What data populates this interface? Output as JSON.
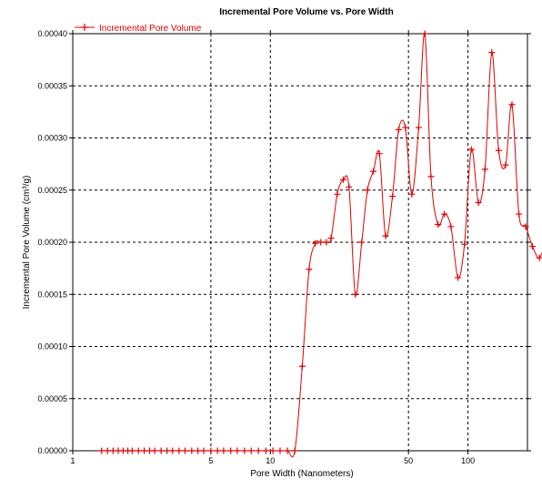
{
  "chart_data": {
    "type": "line",
    "title": "Incremental Pore Volume vs. Pore Width",
    "xlabel": "Pore Width (Nanometers)",
    "ylabel": "Incremental Pore Volume (cm³/g)",
    "x_scale": "log",
    "xlim": [
      1,
      200
    ],
    "ylim": [
      0,
      0.0004
    ],
    "grid": true,
    "legend_position": "top-left",
    "x_ticks": [
      {
        "value": 1,
        "label": "1"
      },
      {
        "value": 5,
        "label": "5"
      },
      {
        "value": 10,
        "label": "10"
      },
      {
        "value": 50,
        "label": "50"
      },
      {
        "value": 100,
        "label": "100"
      }
    ],
    "y_ticks": [
      "0.00000",
      "0.00005",
      "0.00010",
      "0.00015",
      "0.00020",
      "0.00025",
      "0.00030",
      "0.00035",
      "0.00040"
    ],
    "y_tick_values": [
      0,
      5e-05,
      0.0001,
      0.00015,
      0.0002,
      0.00025,
      0.0003,
      0.00035,
      0.0004
    ],
    "series": [
      {
        "name": "Incremental Pore Volume",
        "color": "#e00000",
        "marker": "plus",
        "points": [
          {
            "x": 1.4,
            "y": 0
          },
          {
            "x": 1.5,
            "y": 0
          },
          {
            "x": 1.6,
            "y": 0
          },
          {
            "x": 1.7,
            "y": 0
          },
          {
            "x": 1.8,
            "y": 0
          },
          {
            "x": 1.9,
            "y": 0
          },
          {
            "x": 2.0,
            "y": 0
          },
          {
            "x": 2.15,
            "y": 0
          },
          {
            "x": 2.3,
            "y": 0
          },
          {
            "x": 2.45,
            "y": 0
          },
          {
            "x": 2.6,
            "y": 0
          },
          {
            "x": 2.8,
            "y": 0
          },
          {
            "x": 3.0,
            "y": 0
          },
          {
            "x": 3.2,
            "y": 0
          },
          {
            "x": 3.45,
            "y": 0
          },
          {
            "x": 3.7,
            "y": 0
          },
          {
            "x": 4.0,
            "y": 0
          },
          {
            "x": 4.3,
            "y": 0
          },
          {
            "x": 4.6,
            "y": 0
          },
          {
            "x": 5.0,
            "y": 0
          },
          {
            "x": 5.4,
            "y": 0
          },
          {
            "x": 5.8,
            "y": 0
          },
          {
            "x": 6.3,
            "y": 0
          },
          {
            "x": 6.8,
            "y": 0
          },
          {
            "x": 7.4,
            "y": 0
          },
          {
            "x": 8.0,
            "y": 0
          },
          {
            "x": 8.7,
            "y": 0
          },
          {
            "x": 9.5,
            "y": 0
          },
          {
            "x": 10.3,
            "y": 0
          },
          {
            "x": 11.2,
            "y": 0
          },
          {
            "x": 12.2,
            "y": 0
          },
          {
            "x": 13.3,
            "y": 0
          },
          {
            "x": 14.5,
            "y": 8.1e-05
          },
          {
            "x": 15.7,
            "y": 0.000174
          },
          {
            "x": 16.9,
            "y": 0.000199
          },
          {
            "x": 18.0,
            "y": 0.0002
          },
          {
            "x": 19.2,
            "y": 0.0002
          },
          {
            "x": 20.3,
            "y": 0.000204
          },
          {
            "x": 21.8,
            "y": 0.000246
          },
          {
            "x": 23.4,
            "y": 0.00026
          },
          {
            "x": 25.0,
            "y": 0.000253
          },
          {
            "x": 26.9,
            "y": 0.00015
          },
          {
            "x": 29.0,
            "y": 0.0002
          },
          {
            "x": 31.0,
            "y": 0.00025
          },
          {
            "x": 33.2,
            "y": 0.000268
          },
          {
            "x": 35.6,
            "y": 0.000285
          },
          {
            "x": 38.3,
            "y": 0.000206
          },
          {
            "x": 41.5,
            "y": 0.000244
          },
          {
            "x": 44.6,
            "y": 0.000308
          },
          {
            "x": 48.2,
            "y": 0.00031
          },
          {
            "x": 52.0,
            "y": 0.000246
          },
          {
            "x": 56.3,
            "y": 0.00031
          },
          {
            "x": 60.5,
            "y": 0.0004
          },
          {
            "x": 65.0,
            "y": 0.000263
          },
          {
            "x": 70.5,
            "y": 0.000217
          },
          {
            "x": 76.0,
            "y": 0.000227
          },
          {
            "x": 82.0,
            "y": 0.000215
          },
          {
            "x": 89.0,
            "y": 0.000166
          },
          {
            "x": 96.0,
            "y": 0.000198
          },
          {
            "x": 104.0,
            "y": 0.000289
          },
          {
            "x": 113.0,
            "y": 0.000238
          },
          {
            "x": 122.0,
            "y": 0.00027
          },
          {
            "x": 132.0,
            "y": 0.000382
          },
          {
            "x": 143.0,
            "y": 0.000288
          },
          {
            "x": 155.0,
            "y": 0.000274
          },
          {
            "x": 167.0,
            "y": 0.000332
          },
          {
            "x": 181.0,
            "y": 0.000227
          },
          {
            "x": 196.0,
            "y": 0.000215
          },
          {
            "x": 212.0,
            "y": 0.000196
          },
          {
            "x": 230.0,
            "y": 0.000185
          },
          {
            "x": 248.0,
            "y": 0.000202
          }
        ]
      }
    ]
  }
}
